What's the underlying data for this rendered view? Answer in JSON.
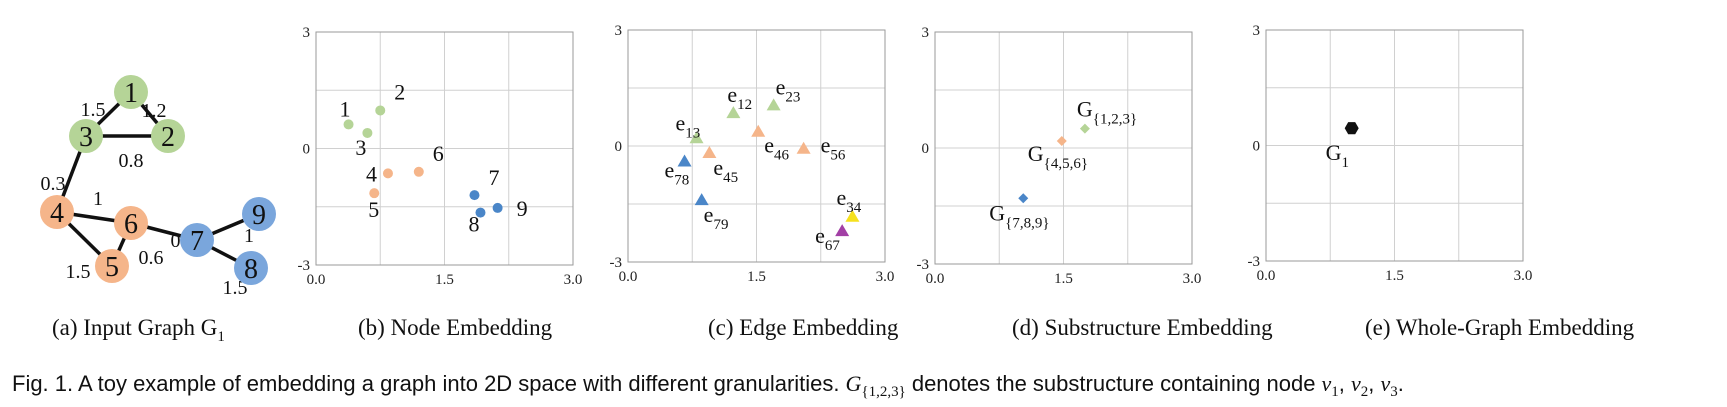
{
  "colors": {
    "green": "#b5d497",
    "orange": "#f5b58a",
    "blue": "#4a86c8",
    "blue_node": "#7aa6dc",
    "yellow": "#f5e11e",
    "purple": "#a23fa5",
    "black": "#111111"
  },
  "panels": [
    {
      "id": "a",
      "caption": "(a) Input Graph G",
      "caption_sub": "1"
    },
    {
      "id": "b",
      "caption": "(b) Node Embedding"
    },
    {
      "id": "c",
      "caption": "(c) Edge Embedding"
    },
    {
      "id": "d",
      "caption": "(d) Substructure Embedding"
    },
    {
      "id": "e",
      "caption": "(e) Whole-Graph Embedding"
    }
  ],
  "graph": {
    "nodes": [
      {
        "label": "1",
        "group": "green"
      },
      {
        "label": "2",
        "group": "green"
      },
      {
        "label": "3",
        "group": "green"
      },
      {
        "label": "4",
        "group": "orange"
      },
      {
        "label": "5",
        "group": "orange"
      },
      {
        "label": "6",
        "group": "orange"
      },
      {
        "label": "7",
        "group": "blue"
      },
      {
        "label": "8",
        "group": "blue"
      },
      {
        "label": "9",
        "group": "blue"
      }
    ],
    "edges": [
      {
        "from": "1",
        "to": "3",
        "weight": "1.5"
      },
      {
        "from": "1",
        "to": "2",
        "weight": "1.2"
      },
      {
        "from": "3",
        "to": "2",
        "weight": "0.8"
      },
      {
        "from": "3",
        "to": "4",
        "weight": "0.3"
      },
      {
        "from": "4",
        "to": "6",
        "weight": "1"
      },
      {
        "from": "4",
        "to": "5",
        "weight": "1.5"
      },
      {
        "from": "6",
        "to": "5",
        "weight": "0.6"
      },
      {
        "from": "6",
        "to": "7",
        "weight": "0.2"
      },
      {
        "from": "7",
        "to": "9",
        "weight": "1"
      },
      {
        "from": "7",
        "to": "8",
        "weight": "1.5"
      }
    ]
  },
  "chart_data": [
    {
      "type": "scatter",
      "title": "(b) Node Embedding",
      "xlim": [
        0,
        3
      ],
      "ylim": [
        -3,
        3
      ],
      "xticks": [
        "0.0",
        "1.5",
        "3.0"
      ],
      "yticks": [
        "3",
        "0",
        "-3"
      ],
      "grid": true,
      "points": [
        {
          "label": "1",
          "x": 0.38,
          "y": 0.62,
          "color": "green",
          "marker": "circle"
        },
        {
          "label": "2",
          "x": 0.75,
          "y": 0.98,
          "color": "green",
          "marker": "circle"
        },
        {
          "label": "3",
          "x": 0.6,
          "y": 0.4,
          "color": "green",
          "marker": "circle"
        },
        {
          "label": "4",
          "x": 0.84,
          "y": -0.64,
          "color": "orange",
          "marker": "circle"
        },
        {
          "label": "5",
          "x": 0.68,
          "y": -1.15,
          "color": "orange",
          "marker": "circle"
        },
        {
          "label": "6",
          "x": 1.2,
          "y": -0.6,
          "color": "orange",
          "marker": "circle"
        },
        {
          "label": "7",
          "x": 1.85,
          "y": -1.2,
          "color": "blue",
          "marker": "circle"
        },
        {
          "label": "8",
          "x": 1.92,
          "y": -1.65,
          "color": "blue",
          "marker": "circle"
        },
        {
          "label": "9",
          "x": 2.12,
          "y": -1.53,
          "color": "blue",
          "marker": "circle"
        }
      ]
    },
    {
      "type": "scatter",
      "title": "(c) Edge Embedding",
      "xlim": [
        0,
        3
      ],
      "ylim": [
        -3,
        3
      ],
      "xticks": [
        "0.0",
        "1.5",
        "3.0"
      ],
      "yticks": [
        "3",
        "0",
        "-3"
      ],
      "grid": true,
      "points": [
        {
          "label": "e",
          "sub": "12",
          "x": 1.23,
          "y": 0.85,
          "color": "green",
          "marker": "triangle"
        },
        {
          "label": "e",
          "sub": "23",
          "x": 1.7,
          "y": 1.05,
          "color": "green",
          "marker": "triangle"
        },
        {
          "label": "e",
          "sub": "13",
          "x": 0.8,
          "y": 0.2,
          "color": "green",
          "marker": "triangle"
        },
        {
          "label": "e",
          "sub": "46",
          "x": 1.52,
          "y": 0.37,
          "color": "orange",
          "marker": "triangle"
        },
        {
          "label": "e",
          "sub": "56",
          "x": 2.05,
          "y": -0.07,
          "color": "orange",
          "marker": "triangle"
        },
        {
          "label": "e",
          "sub": "45",
          "x": 0.95,
          "y": -0.18,
          "color": "orange",
          "marker": "triangle"
        },
        {
          "label": "e",
          "sub": "78",
          "x": 0.66,
          "y": -0.4,
          "color": "blue",
          "marker": "triangle"
        },
        {
          "label": "e",
          "sub": "79",
          "x": 0.86,
          "y": -1.4,
          "color": "blue",
          "marker": "triangle"
        },
        {
          "label": "e",
          "sub": "34",
          "x": 2.62,
          "y": -1.83,
          "color": "yellow",
          "marker": "triangle"
        },
        {
          "label": "e",
          "sub": "67",
          "x": 2.5,
          "y": -2.2,
          "color": "purple",
          "marker": "triangle"
        }
      ]
    },
    {
      "type": "scatter",
      "title": "(d) Substructure Embedding",
      "xlim": [
        0,
        3
      ],
      "ylim": [
        -3,
        3
      ],
      "xticks": [
        "0.0",
        "1.5",
        "3.0"
      ],
      "yticks": [
        "3",
        "0",
        "-3"
      ],
      "grid": true,
      "points": [
        {
          "label": "G",
          "sub": "{1,2,3}",
          "x": 1.75,
          "y": 0.5,
          "color": "green",
          "marker": "diamond"
        },
        {
          "label": "G",
          "sub": "{4,5,6}",
          "x": 1.48,
          "y": 0.18,
          "color": "orange",
          "marker": "diamond"
        },
        {
          "label": "G",
          "sub": "{7,8,9}",
          "x": 1.03,
          "y": -1.3,
          "color": "blue",
          "marker": "diamond"
        }
      ]
    },
    {
      "type": "scatter",
      "title": "(e) Whole-Graph Embedding",
      "xlim": [
        0,
        3
      ],
      "ylim": [
        -3,
        3
      ],
      "xticks": [
        "0.0",
        "1.5",
        "3.0"
      ],
      "yticks": [
        "3",
        "0",
        "-3"
      ],
      "grid": true,
      "points": [
        {
          "label": "G",
          "sub": "1",
          "x": 1.0,
          "y": 0.45,
          "color": "black",
          "marker": "hexagon"
        }
      ]
    }
  ],
  "figure_caption": {
    "prefix": "Fig. 1. A toy example of embedding a graph into 2D space with different granularities.",
    "math_G": "G",
    "math_G_sub": "{1,2,3}",
    "middle": "denotes the substructure containing node",
    "v1": "v",
    "v1_sub": "1",
    "v2": "v",
    "v2_sub": "2",
    "v3": "v",
    "v3_sub": "3"
  }
}
